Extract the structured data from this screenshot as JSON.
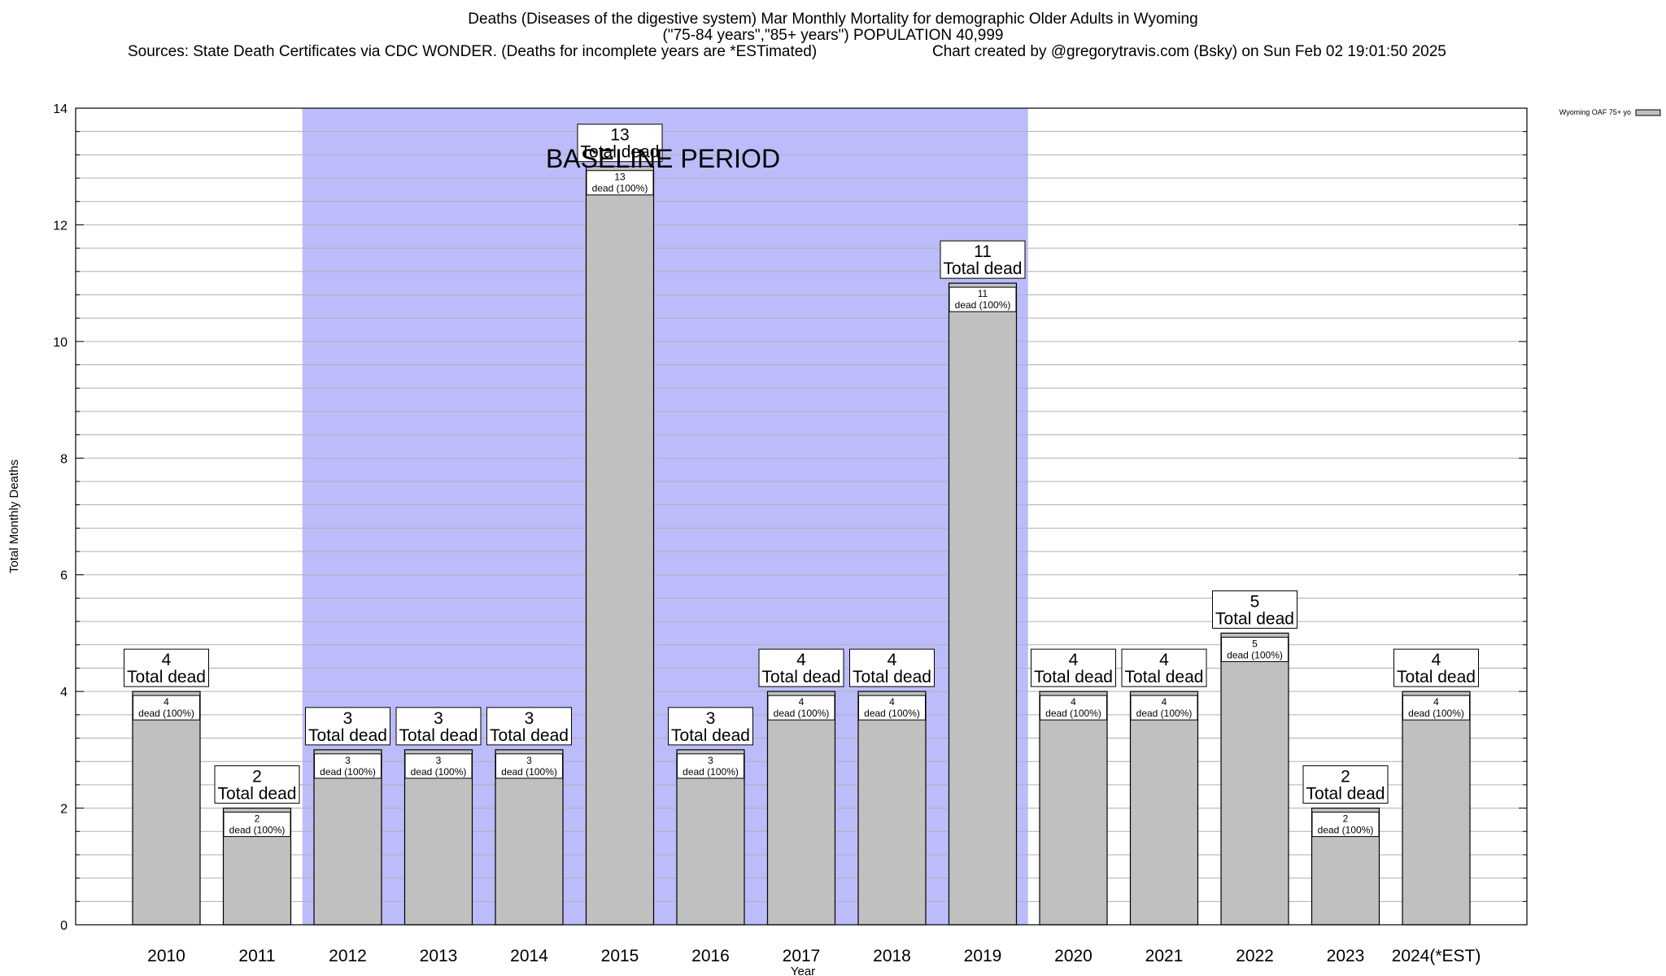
{
  "chart_data": {
    "type": "bar",
    "title": "Deaths (Diseases of the digestive system) Mar Monthly Mortality for demographic Older Adults in Wyoming",
    "subtitle": "(\"75-84 years\",\"85+ years\") POPULATION 40,999",
    "sources": "Sources: State Death Certificates via CDC WONDER. (Deaths for incomplete years are *ESTimated)",
    "credit": "Chart created by @gregorytravis.com (Bsky) on Sun Feb 02 19:01:50 2025",
    "xlabel": "Year",
    "ylabel": "Total Monthly Deaths",
    "ylim": [
      0,
      14
    ],
    "yticks": [
      0,
      2,
      4,
      6,
      8,
      10,
      12,
      14
    ],
    "categories": [
      "2010",
      "2011",
      "2012",
      "2013",
      "2014",
      "2015",
      "2016",
      "2017",
      "2018",
      "2019",
      "2020",
      "2021",
      "2022",
      "2023",
      "2024(*EST)"
    ],
    "series": [
      {
        "name": "Wyoming OAF 75+ yo",
        "values": [
          4,
          2,
          3,
          3,
          3,
          13,
          3,
          4,
          4,
          11,
          4,
          4,
          5,
          2,
          4
        ],
        "color": "#c0c0c0"
      }
    ],
    "total_label": "Total dead",
    "bar_label": "dead (100%)",
    "baseline": {
      "label": "BASELINE PERIOD",
      "start": "2012",
      "end": "2019",
      "color": "#bcbcfa"
    },
    "grid": true,
    "legend_position": "top-right"
  }
}
